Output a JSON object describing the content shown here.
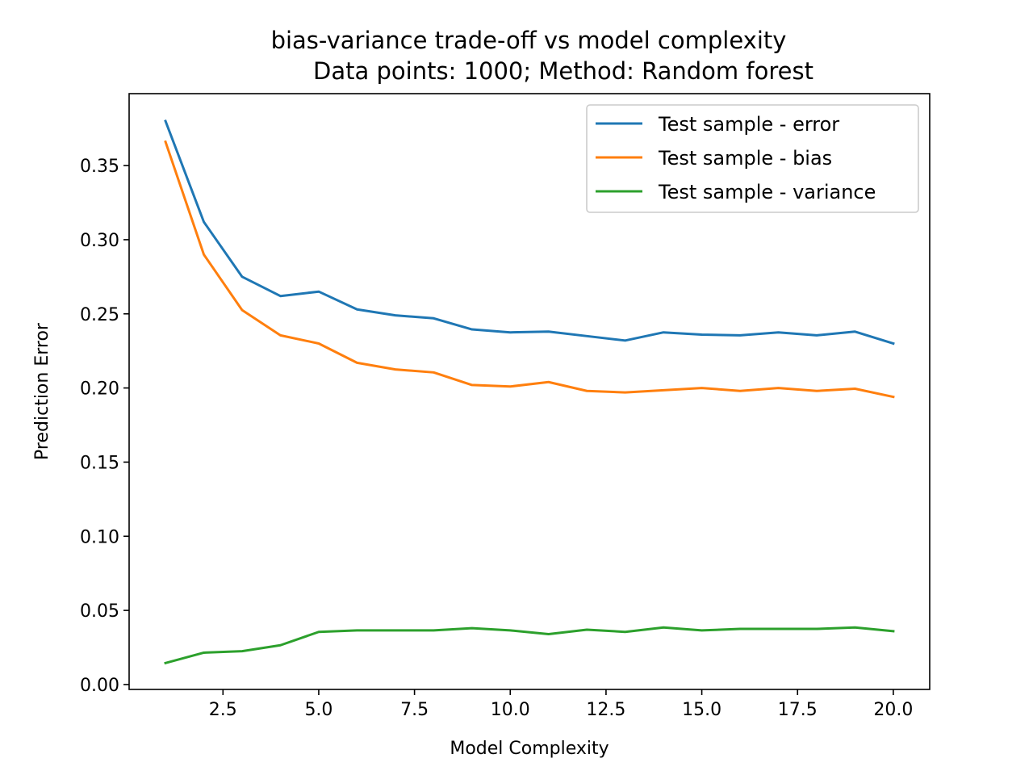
{
  "chart_data": {
    "type": "line",
    "title_line1": "bias-variance trade-off vs model complexity",
    "title_line2": "Data points: 1000; Method: Random forest",
    "xlabel": "Model Complexity",
    "ylabel": "Prediction Error",
    "xlim": [
      0.05,
      20.95
    ],
    "ylim": [
      -0.0033,
      0.3985
    ],
    "xticks": [
      2.5,
      5.0,
      7.5,
      10.0,
      12.5,
      15.0,
      17.5,
      20.0
    ],
    "xtick_labels": [
      "2.5",
      "5.0",
      "7.5",
      "10.0",
      "12.5",
      "15.0",
      "17.5",
      "20.0"
    ],
    "yticks": [
      0.0,
      0.05,
      0.1,
      0.15,
      0.2,
      0.25,
      0.3,
      0.35
    ],
    "ytick_labels": [
      "0.00",
      "0.05",
      "0.10",
      "0.15",
      "0.20",
      "0.25",
      "0.30",
      "0.35"
    ],
    "legend_position": "top-right",
    "x": [
      1,
      2,
      3,
      4,
      5,
      6,
      7,
      8,
      9,
      10,
      11,
      12,
      13,
      14,
      15,
      16,
      17,
      18,
      19,
      20
    ],
    "series": [
      {
        "name": "Test sample - error",
        "color": "#1f77b4",
        "values": [
          0.38,
          0.312,
          0.275,
          0.262,
          0.265,
          0.253,
          0.249,
          0.247,
          0.2395,
          0.2375,
          0.238,
          0.235,
          0.232,
          0.2375,
          0.236,
          0.2355,
          0.2375,
          0.2355,
          0.238,
          0.23
        ]
      },
      {
        "name": "Test sample - bias",
        "color": "#ff7f0e",
        "values": [
          0.366,
          0.29,
          0.2525,
          0.2355,
          0.23,
          0.217,
          0.2125,
          0.2105,
          0.202,
          0.201,
          0.204,
          0.198,
          0.197,
          0.1985,
          0.2,
          0.198,
          0.2,
          0.198,
          0.1995,
          0.194
        ]
      },
      {
        "name": "Test sample - variance",
        "color": "#2ca02c",
        "values": [
          0.0145,
          0.0215,
          0.0225,
          0.0265,
          0.0355,
          0.0365,
          0.0365,
          0.0365,
          0.038,
          0.0365,
          0.034,
          0.037,
          0.0355,
          0.0385,
          0.0365,
          0.0375,
          0.0375,
          0.0375,
          0.0385,
          0.036
        ]
      }
    ]
  }
}
